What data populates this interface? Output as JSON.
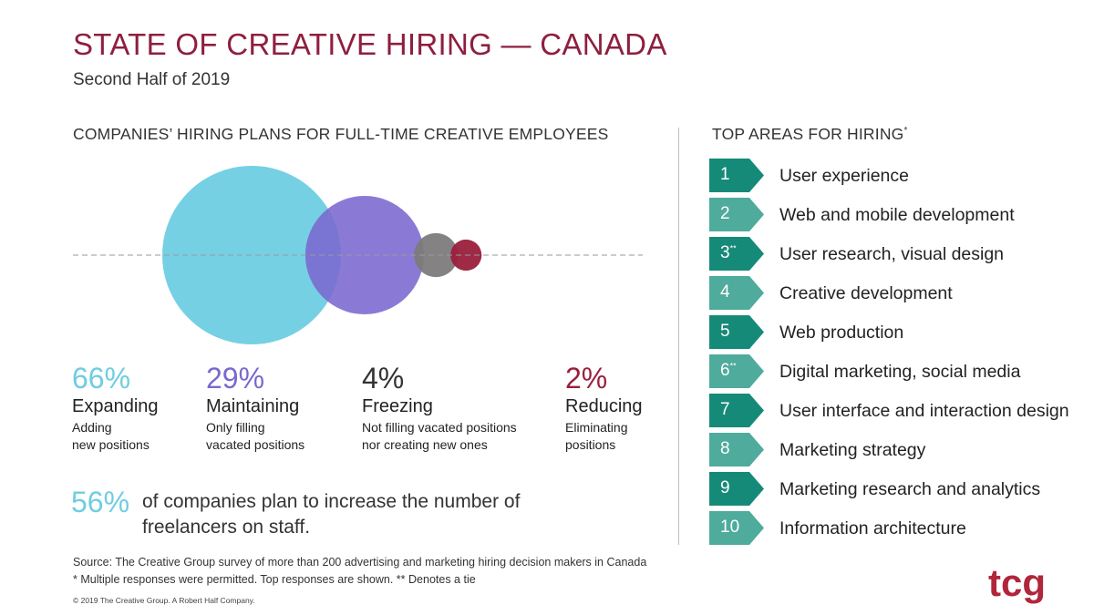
{
  "title": "STATE OF CREATIVE HIRING — CANADA",
  "subtitle": "Second Half of 2019",
  "left_heading": "COMPANIES’ HIRING PLANS FOR FULL-TIME CREATIVE EMPLOYEES",
  "right_heading": "TOP AREAS FOR HIRING",
  "right_heading_mark": "*",
  "chart_data": {
    "type": "bubble",
    "title": "COMPANIES’ HIRING PLANS FOR FULL-TIME CREATIVE EMPLOYEES",
    "unit": "%",
    "series": [
      {
        "name": "Expanding",
        "value": 66,
        "label": "66%",
        "description": [
          "Adding",
          "new positions"
        ],
        "color": "#6fcde1"
      },
      {
        "name": "Maintaining",
        "value": 29,
        "label": "29%",
        "description": [
          "Only filling",
          "vacated positions"
        ],
        "color": "#7b68cf"
      },
      {
        "name": "Freezing",
        "value": 4,
        "label": "4%",
        "description": [
          "Not filling vacated positions",
          "nor creating new ones"
        ],
        "color": "#7d7b7b"
      },
      {
        "name": "Reducing",
        "value": 2,
        "label": "2%",
        "description": [
          "Eliminating",
          "positions"
        ],
        "color": "#9a1f3c"
      }
    ]
  },
  "freelancer": {
    "value": "56%",
    "text": "of companies plan to increase the number of freelancers on staff."
  },
  "top_areas": [
    {
      "rank": "1",
      "mark": "",
      "label": "User experience"
    },
    {
      "rank": "2",
      "mark": "",
      "label": "Web and mobile development"
    },
    {
      "rank": "3",
      "mark": "**",
      "label": "User research, visual design"
    },
    {
      "rank": "4",
      "mark": "",
      "label": "Creative development"
    },
    {
      "rank": "5",
      "mark": "",
      "label": "Web production"
    },
    {
      "rank": "6",
      "mark": "**",
      "label": "Digital marketing, social media"
    },
    {
      "rank": "7",
      "mark": "",
      "label": "User interface and interaction design"
    },
    {
      "rank": "8",
      "mark": "",
      "label": "Marketing strategy"
    },
    {
      "rank": "9",
      "mark": "",
      "label": "Marketing research and analytics"
    },
    {
      "rank": "10",
      "mark": "",
      "label": "Information architecture"
    }
  ],
  "colors": {
    "title": "#8e1f3f",
    "badge_dark": "#168a78",
    "badge_light": "#4fab9c",
    "highlight": "#6fcde1"
  },
  "footnotes": {
    "source": "Source: The Creative Group survey of more than 200 advertising and marketing hiring decision makers in Canada",
    "multiple": "* Multiple responses were permitted. Top responses are shown. ** Denotes a tie"
  },
  "copyright": "© 2019 The Creative Group. A Robert Half Company.",
  "logo_text": "tcg"
}
